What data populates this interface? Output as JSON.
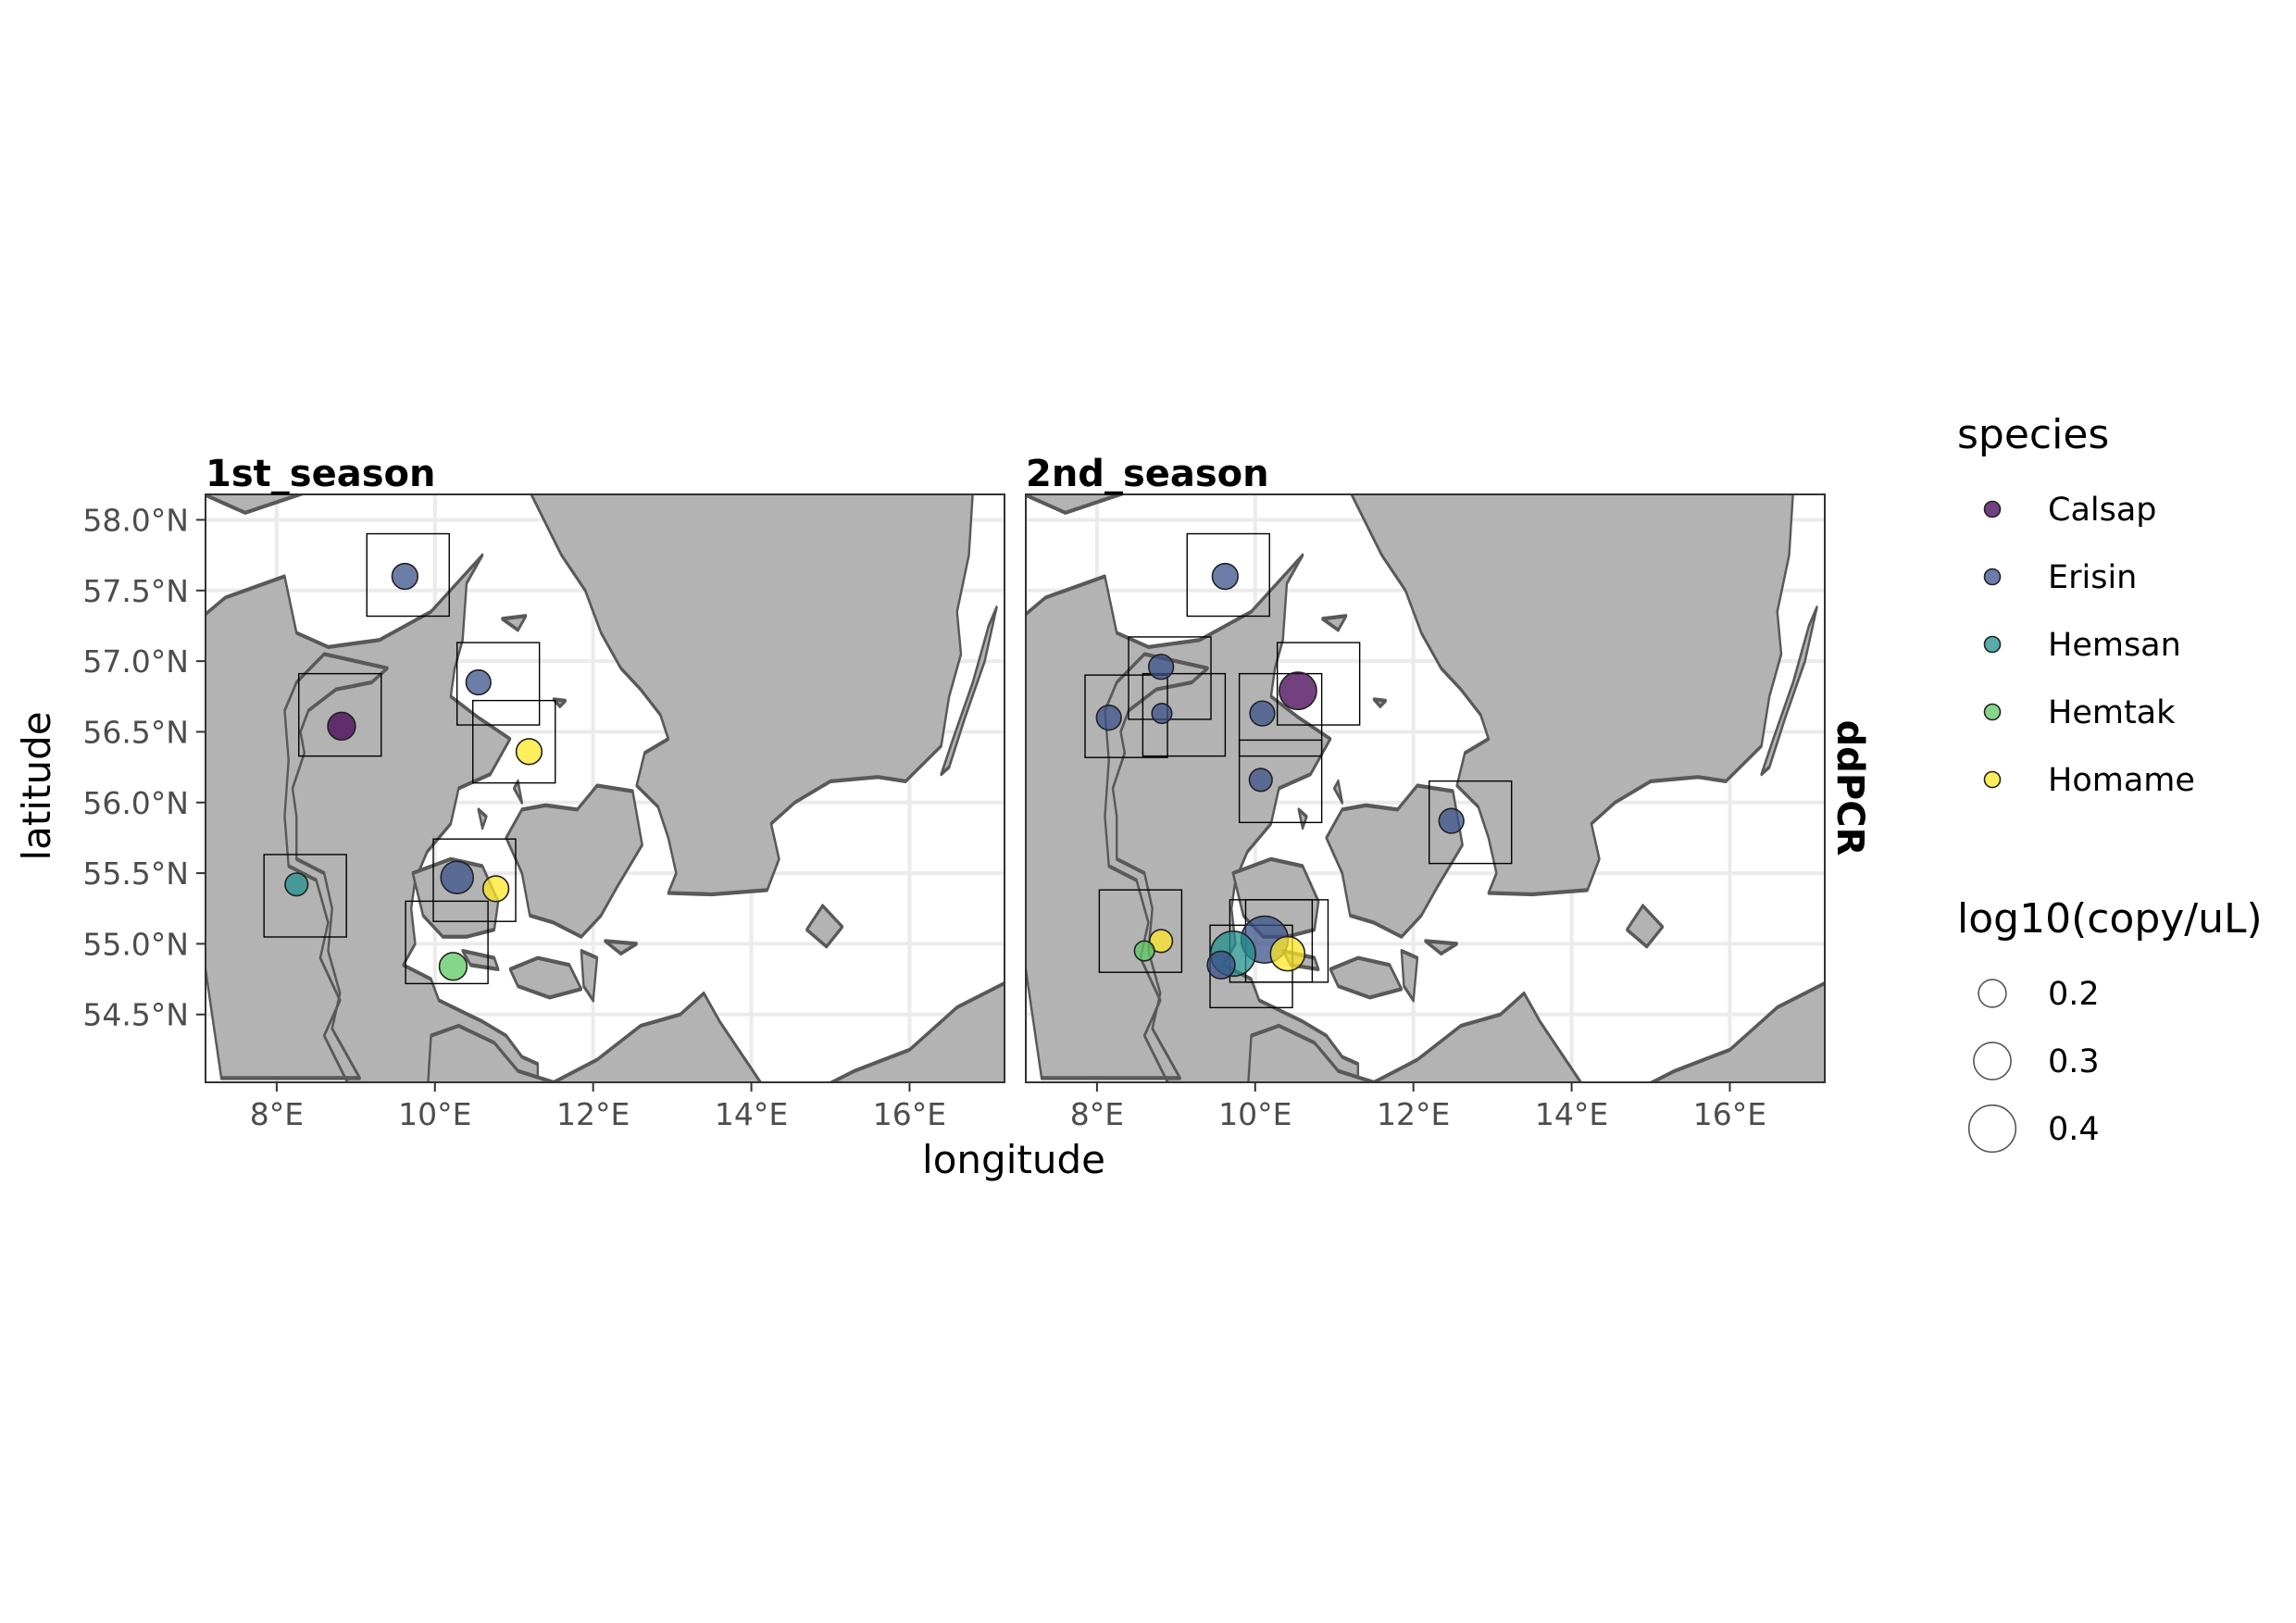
{
  "chart_data": {
    "type": "scatter",
    "map_extent": {
      "lon": [
        7.1,
        17.2
      ],
      "lat": [
        54.02,
        58.18
      ]
    },
    "x_ticks": [
      8,
      10,
      12,
      14,
      16
    ],
    "x_tick_labels": [
      "8°E",
      "10°E",
      "12°E",
      "14°E",
      "16°E"
    ],
    "y_ticks": [
      54.5,
      55.0,
      55.5,
      56.0,
      56.5,
      57.0,
      57.5,
      58.0
    ],
    "y_tick_labels": [
      "54.5°N",
      "55.0°N",
      "55.5°N",
      "56.0°N",
      "56.5°N",
      "57.0°N",
      "57.5°N",
      "58.0°N"
    ],
    "xlabel": "longitude",
    "ylabel": "latitude",
    "row_strip": "ddPCR",
    "grid": true,
    "legend_position": "right",
    "species_colors": {
      "Calsap": "#440154",
      "Erisin": "#3b528b",
      "Hemsan": "#21908c",
      "Hemtak": "#5dc863",
      "Homame": "#fde725"
    },
    "panels": [
      {
        "title": "1st_season",
        "boxes": [
          {
            "lon": 9.66,
            "lat": 57.61
          },
          {
            "lon": 10.8,
            "lat": 56.84
          },
          {
            "lon": 8.8,
            "lat": 56.62
          },
          {
            "lon": 11.0,
            "lat": 56.43
          },
          {
            "lon": 8.36,
            "lat": 55.34
          },
          {
            "lon": 10.5,
            "lat": 55.45
          },
          {
            "lon": 10.15,
            "lat": 55.01
          }
        ],
        "points": [
          {
            "species": "Erisin",
            "lon": 9.62,
            "lat": 57.6,
            "value": 0.18
          },
          {
            "species": "Erisin",
            "lon": 10.55,
            "lat": 56.85,
            "value": 0.17
          },
          {
            "species": "Calsap",
            "lon": 8.82,
            "lat": 56.54,
            "value": 0.2
          },
          {
            "species": "Homame",
            "lon": 11.19,
            "lat": 56.36,
            "value": 0.18
          },
          {
            "species": "Hemsan",
            "lon": 8.25,
            "lat": 55.42,
            "value": 0.15
          },
          {
            "species": "Erisin",
            "lon": 10.28,
            "lat": 55.47,
            "value": 0.25
          },
          {
            "species": "Homame",
            "lon": 10.77,
            "lat": 55.39,
            "value": 0.18
          },
          {
            "species": "Hemtak",
            "lon": 10.23,
            "lat": 54.84,
            "value": 0.2
          }
        ]
      },
      {
        "title": "2nd_season",
        "boxes": [
          {
            "lon": 9.66,
            "lat": 57.61
          },
          {
            "lon": 8.92,
            "lat": 56.88
          },
          {
            "lon": 8.37,
            "lat": 56.61
          },
          {
            "lon": 9.1,
            "lat": 56.62
          },
          {
            "lon": 10.32,
            "lat": 56.62
          },
          {
            "lon": 10.8,
            "lat": 56.84
          },
          {
            "lon": 10.32,
            "lat": 56.15
          },
          {
            "lon": 12.72,
            "lat": 55.86
          },
          {
            "lon": 8.55,
            "lat": 55.09
          },
          {
            "lon": 10.4,
            "lat": 55.02
          },
          {
            "lon": 9.95,
            "lat": 54.84
          },
          {
            "lon": 10.2,
            "lat": 55.02
          }
        ],
        "points": [
          {
            "species": "Erisin",
            "lon": 9.62,
            "lat": 57.6,
            "value": 0.18
          },
          {
            "species": "Erisin",
            "lon": 8.81,
            "lat": 56.96,
            "value": 0.17
          },
          {
            "species": "Erisin",
            "lon": 8.15,
            "lat": 56.6,
            "value": 0.17
          },
          {
            "species": "Erisin",
            "lon": 8.82,
            "lat": 56.63,
            "value": 0.12
          },
          {
            "species": "Erisin",
            "lon": 10.09,
            "lat": 56.63,
            "value": 0.17
          },
          {
            "species": "Calsap",
            "lon": 10.54,
            "lat": 56.79,
            "value": 0.3
          },
          {
            "species": "Erisin",
            "lon": 10.07,
            "lat": 56.16,
            "value": 0.15
          },
          {
            "species": "Erisin",
            "lon": 12.48,
            "lat": 55.87,
            "value": 0.17
          },
          {
            "species": "Homame",
            "lon": 8.81,
            "lat": 55.02,
            "value": 0.15
          },
          {
            "species": "Hemtak",
            "lon": 8.6,
            "lat": 54.95,
            "value": 0.12
          },
          {
            "species": "Hemsan",
            "lon": 9.72,
            "lat": 54.93,
            "value": 0.38
          },
          {
            "species": "Erisin",
            "lon": 10.12,
            "lat": 55.03,
            "value": 0.4
          },
          {
            "species": "Erisin",
            "lon": 9.57,
            "lat": 54.85,
            "value": 0.2
          },
          {
            "species": "Homame",
            "lon": 10.41,
            "lat": 54.93,
            "value": 0.27
          }
        ]
      }
    ]
  },
  "legend": {
    "species_title": "species",
    "species": [
      "Calsap",
      "Erisin",
      "Hemsan",
      "Hemtak",
      "Homame"
    ],
    "size_title": "log10(copy/uL)",
    "size_values": [
      0.2,
      0.3,
      0.4
    ],
    "size_labels": [
      "0.2",
      "0.3",
      "0.4"
    ]
  }
}
